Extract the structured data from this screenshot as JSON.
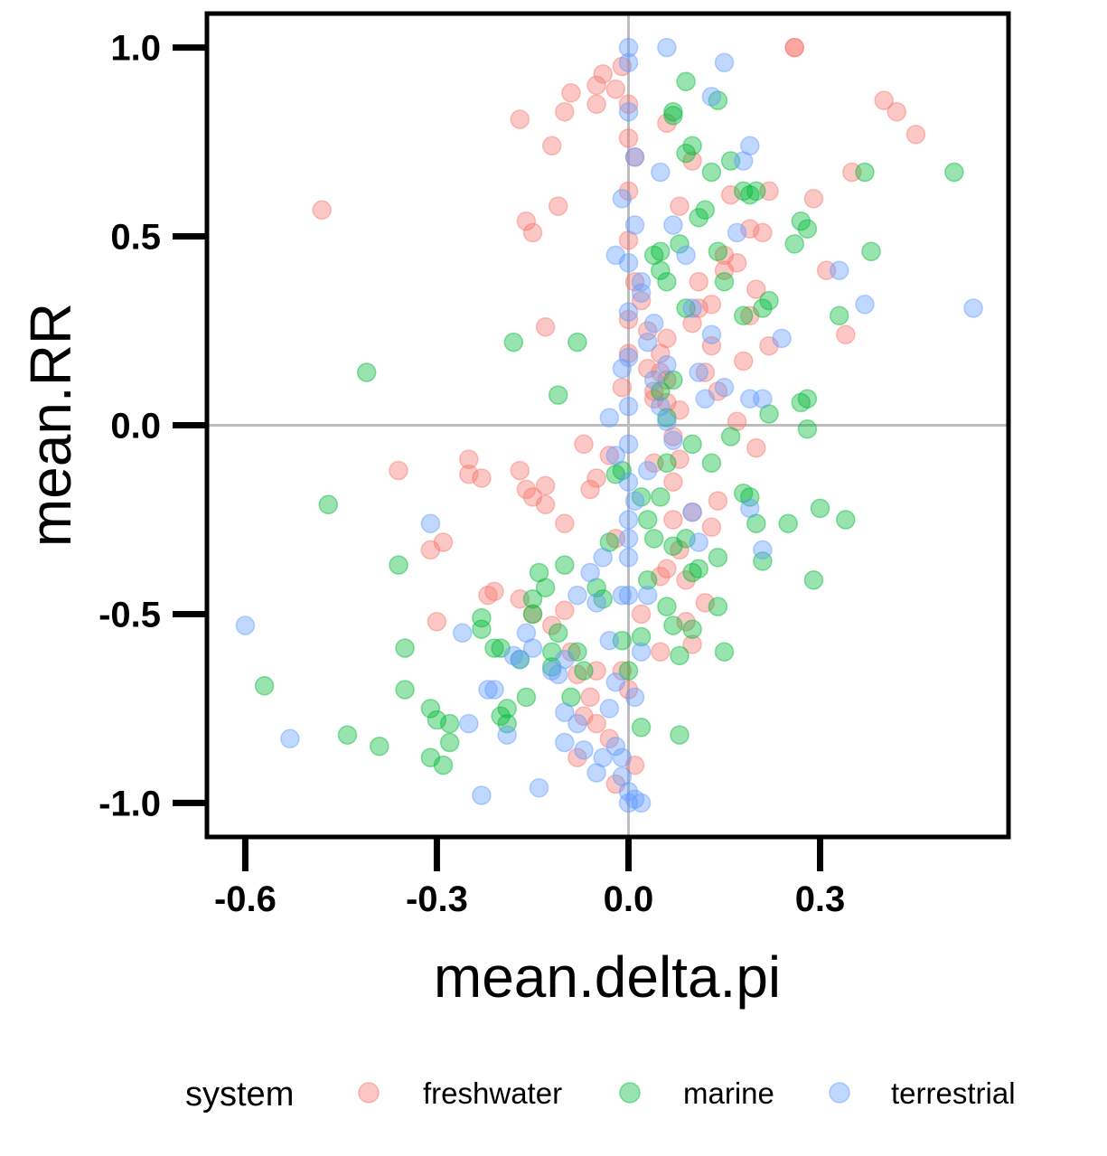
{
  "chart_data": {
    "type": "scatter",
    "title": "",
    "xlabel": "mean.delta.pi",
    "ylabel": "mean.RR",
    "xlim": [
      -0.66,
      0.595
    ],
    "ylim": [
      -1.09,
      1.09
    ],
    "x_ticks": [
      -0.6,
      -0.3,
      0.0,
      0.3
    ],
    "x_tick_labels": [
      "-0.6",
      "-0.3",
      "0.0",
      "0.3"
    ],
    "y_ticks": [
      1.0,
      0.5,
      0.0,
      -0.5,
      -1.0
    ],
    "y_tick_labels": [
      "1.0",
      "0.5",
      "0.0",
      "-0.5",
      "-1.0"
    ],
    "reference_lines": {
      "x": 0.0,
      "y": 0.0
    },
    "grid": false,
    "legend": {
      "title": "system",
      "position": "bottom"
    },
    "colors": {
      "freshwater": "#F8766D",
      "marine": "#00BA38",
      "terrestrial": "#619CFF"
    },
    "series": [
      {
        "name": "freshwater",
        "x": [
          -0.48,
          -0.17,
          -0.16,
          -0.15,
          -0.12,
          -0.1,
          -0.11,
          -0.09,
          -0.05,
          -0.04,
          -0.05,
          -0.02,
          0.26,
          0.26,
          0.4,
          0.42,
          0.45,
          0.35,
          0.29,
          0.31,
          0.22,
          0.21,
          0.19,
          0.16,
          0.1,
          0.08,
          0.06,
          0.15,
          0.15,
          0.17,
          0.13,
          0.19,
          0.22,
          0.34,
          0.2,
          0.18,
          0.11,
          0.13,
          -0.13,
          -0.01,
          0.0,
          0.0,
          0.01,
          0.0,
          0.0,
          0.01,
          0.02,
          0.0,
          0.0,
          -0.01,
          0.03,
          0.04,
          -0.36,
          -0.25,
          -0.25,
          -0.23,
          -0.17,
          -0.16,
          -0.15,
          -0.13,
          -0.13,
          -0.1,
          -0.05,
          -0.07,
          -0.03,
          -0.06,
          -0.31,
          -0.29,
          -0.21,
          -0.22,
          -0.3,
          -0.17,
          -0.15,
          -0.12,
          -0.1,
          -0.09,
          -0.08,
          -0.05,
          -0.07,
          -0.03,
          -0.08,
          -0.06,
          -0.05,
          -0.02,
          0.05,
          0.06,
          0.07,
          0.09,
          0.12,
          0.13,
          0.14,
          0.1,
          0.04,
          0.07,
          0.08,
          0.06,
          0.05,
          0.04,
          0.06,
          0.1,
          0.11,
          0.12,
          0.14,
          0.17,
          0.2,
          0.08,
          0.1,
          0.05,
          -0.01,
          0.0,
          0.01,
          0.02,
          -0.02,
          0.03,
          0.05,
          0.06,
          0.07,
          0.08,
          0.09
        ],
        "y": [
          0.57,
          0.81,
          0.54,
          0.51,
          0.74,
          0.83,
          0.58,
          0.88,
          0.85,
          0.93,
          0.9,
          0.89,
          1.0,
          1.0,
          0.86,
          0.83,
          0.77,
          0.67,
          0.6,
          0.41,
          0.62,
          0.51,
          0.52,
          0.61,
          0.7,
          0.58,
          0.8,
          0.45,
          0.41,
          0.43,
          0.21,
          0.29,
          0.21,
          0.24,
          0.36,
          0.17,
          0.38,
          0.32,
          0.26,
          0.95,
          0.85,
          0.76,
          0.71,
          0.62,
          0.49,
          0.38,
          0.33,
          0.28,
          0.19,
          0.1,
          0.15,
          0.07,
          -0.12,
          -0.09,
          -0.13,
          -0.14,
          -0.12,
          -0.17,
          -0.19,
          -0.16,
          -0.21,
          -0.26,
          -0.14,
          -0.05,
          -0.08,
          -0.17,
          -0.33,
          -0.31,
          -0.44,
          -0.45,
          -0.52,
          -0.46,
          -0.5,
          -0.53,
          -0.49,
          -0.6,
          -0.66,
          -0.65,
          -0.77,
          -0.83,
          -0.88,
          -0.72,
          -0.79,
          -0.95,
          -0.6,
          -0.38,
          -0.25,
          -0.52,
          -0.47,
          -0.27,
          -0.2,
          -0.58,
          -0.1,
          -0.03,
          0.04,
          0.12,
          0.19,
          0.09,
          0.23,
          0.27,
          0.31,
          0.14,
          0.09,
          0.01,
          -0.06,
          -0.09,
          -0.23,
          -0.4,
          -0.65,
          -0.7,
          -0.9,
          -0.5,
          -0.3,
          0.25,
          0.14,
          0.06,
          -0.15,
          -0.33,
          -0.41
        ]
      },
      {
        "name": "marine",
        "x": [
          0.09,
          0.07,
          0.07,
          0.1,
          0.09,
          0.14,
          0.11,
          0.12,
          0.13,
          0.08,
          0.05,
          0.04,
          0.05,
          0.06,
          0.14,
          0.15,
          0.18,
          0.19,
          0.2,
          0.21,
          0.22,
          0.26,
          0.27,
          0.28,
          0.33,
          0.37,
          0.38,
          0.51,
          0.16,
          0.18,
          0.09,
          -0.41,
          -0.18,
          -0.08,
          -0.11,
          0.27,
          0.28,
          0.28,
          0.22,
          0.1,
          0.13,
          0.16,
          0.18,
          0.19,
          0.2,
          0.21,
          0.25,
          0.29,
          0.3,
          0.34,
          0.14,
          0.1,
          0.07,
          0.09,
          -0.47,
          -0.36,
          -0.35,
          -0.35,
          -0.57,
          -0.44,
          -0.39,
          -0.31,
          -0.3,
          -0.28,
          -0.28,
          -0.29,
          -0.31,
          -0.23,
          -0.23,
          -0.21,
          -0.2,
          -0.19,
          -0.2,
          -0.19,
          -0.17,
          -0.16,
          -0.15,
          -0.15,
          -0.14,
          -0.13,
          -0.12,
          -0.12,
          -0.11,
          -0.1,
          -0.09,
          -0.08,
          -0.07,
          -0.05,
          -0.04,
          -0.03,
          -0.02,
          -0.01,
          0.02,
          0.02,
          0.03,
          0.03,
          0.04,
          0.05,
          0.06,
          0.06,
          0.07,
          0.08,
          0.1,
          0.11,
          0.15,
          0.14,
          0.08,
          0.02,
          0.0,
          -0.01,
          0.05,
          0.06,
          0.07
        ],
        "y": [
          0.91,
          0.83,
          0.82,
          0.74,
          0.72,
          0.86,
          0.55,
          0.57,
          0.67,
          0.48,
          0.46,
          0.45,
          0.41,
          0.38,
          0.46,
          0.38,
          0.29,
          0.61,
          0.62,
          0.31,
          0.33,
          0.48,
          0.54,
          0.52,
          0.29,
          0.67,
          0.46,
          0.67,
          0.7,
          0.62,
          0.31,
          0.14,
          0.22,
          0.22,
          0.08,
          0.06,
          0.07,
          -0.01,
          0.03,
          -0.05,
          -0.1,
          -0.03,
          -0.18,
          -0.19,
          -0.26,
          -0.36,
          -0.26,
          -0.41,
          -0.22,
          -0.25,
          -0.35,
          -0.39,
          -0.32,
          -0.3,
          -0.21,
          -0.37,
          -0.59,
          -0.7,
          -0.69,
          -0.82,
          -0.85,
          -0.75,
          -0.78,
          -0.79,
          -0.84,
          -0.9,
          -0.88,
          -0.51,
          -0.54,
          -0.59,
          -0.59,
          -0.79,
          -0.77,
          -0.75,
          -0.62,
          -0.72,
          -0.5,
          -0.46,
          -0.39,
          -0.43,
          -0.6,
          -0.64,
          -0.55,
          -0.37,
          -0.72,
          -0.6,
          -0.65,
          -0.43,
          -0.46,
          -0.31,
          -0.13,
          -0.57,
          -0.19,
          -0.56,
          -0.25,
          -0.41,
          -0.3,
          -0.19,
          -0.1,
          -0.48,
          -0.53,
          -0.61,
          -0.54,
          -0.38,
          -0.6,
          -0.48,
          -0.82,
          -0.8,
          -0.65,
          -0.12,
          0.09,
          0.02,
          0.12
        ]
      },
      {
        "name": "terrestrial",
        "x": [
          0.06,
          0.15,
          0.13,
          0.19,
          0.18,
          0.17,
          0.05,
          0.07,
          0.09,
          0.1,
          0.33,
          0.37,
          0.54,
          0.24,
          0.19,
          0.13,
          0.11,
          0.12,
          0.15,
          0.21,
          0.19,
          0.21,
          0.1,
          0.11,
          -0.31,
          -0.6,
          -0.53,
          -0.26,
          -0.25,
          -0.21,
          -0.23,
          -0.19,
          -0.18,
          -0.14,
          -0.11,
          -0.1,
          -0.08,
          -0.07,
          -0.05,
          -0.04,
          -0.03,
          -0.02,
          -0.01,
          0.0,
          0.01,
          -0.16,
          -0.1,
          -0.08,
          -0.05,
          -0.04,
          -0.03,
          -0.06,
          -0.1,
          -0.12,
          -0.15,
          -0.17,
          -0.22,
          -0.02,
          -0.01,
          0.0,
          0.01,
          0.02,
          0.0,
          -0.01,
          0.01,
          0.02,
          0.03,
          0.0,
          0.0,
          0.0,
          0.01,
          -0.01,
          -0.02,
          0.02,
          0.03,
          0.04,
          0.05,
          0.06,
          0.01,
          0.0,
          0.0,
          0.0,
          0.0,
          0.0,
          0.0,
          0.0,
          0.0,
          0.0,
          -0.02,
          -0.01,
          0.02,
          -0.03,
          0.03,
          0.04,
          0.06,
          0.07
        ],
        "y": [
          1.0,
          0.96,
          0.87,
          0.74,
          0.7,
          0.51,
          0.67,
          0.53,
          0.45,
          0.31,
          0.41,
          0.32,
          0.31,
          0.23,
          0.07,
          0.24,
          0.14,
          0.07,
          0.1,
          0.07,
          -0.22,
          -0.33,
          -0.23,
          -0.31,
          -0.26,
          -0.53,
          -0.83,
          -0.55,
          -0.79,
          -0.7,
          -0.98,
          -0.82,
          -0.61,
          -0.96,
          -0.66,
          -0.84,
          -0.79,
          -0.86,
          -0.92,
          -0.88,
          -0.75,
          -0.68,
          -0.45,
          -0.3,
          -0.2,
          -0.55,
          -0.62,
          -0.45,
          -0.47,
          -0.35,
          -0.57,
          -0.39,
          -0.76,
          -0.65,
          -0.59,
          -0.62,
          -0.7,
          -0.85,
          -0.93,
          -0.97,
          -0.99,
          -1.0,
          -1.0,
          -0.88,
          -0.72,
          -0.6,
          -0.45,
          1.0,
          0.96,
          0.83,
          0.71,
          0.6,
          0.45,
          0.35,
          0.22,
          0.12,
          0.05,
          0.01,
          0.53,
          0.43,
          0.3,
          0.18,
          0.05,
          -0.05,
          -0.15,
          -0.25,
          -0.35,
          -0.45,
          -0.08,
          0.15,
          0.38,
          0.02,
          -0.12,
          0.27,
          0.16,
          -0.04
        ]
      }
    ]
  }
}
